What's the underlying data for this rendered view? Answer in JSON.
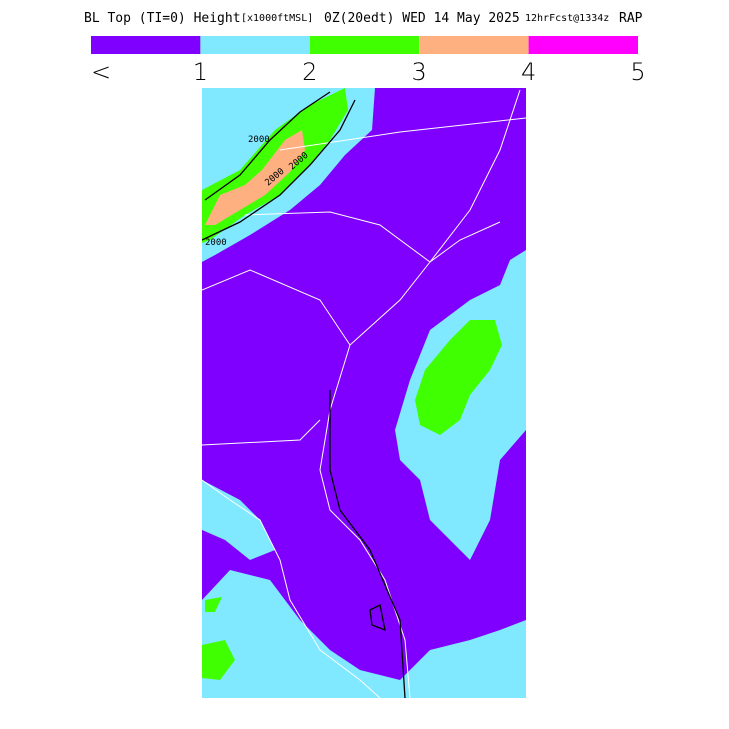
{
  "header": {
    "title_parts": [
      "BL Top (TI=0) Height",
      "[x1000ftMSL]",
      "0Z(20edt) WED 14 May 2025",
      "12hrFcst@1334z",
      "RAP"
    ]
  },
  "legend": {
    "colors": [
      "#8000ff",
      "#80e8ff",
      "#40ff00",
      "#ffb080",
      "#ff00ff"
    ],
    "labels": [
      "<",
      "1",
      "2",
      "3",
      "4",
      "5"
    ]
  },
  "map": {
    "contour_labels": [
      "2000",
      "2000",
      "2000",
      "2000"
    ]
  }
}
